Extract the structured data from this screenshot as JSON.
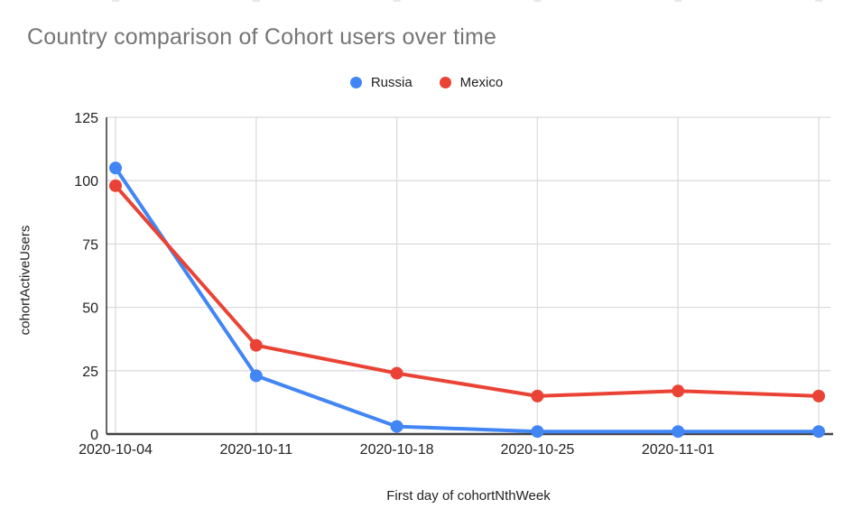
{
  "title": "Country comparison of Cohort users over time",
  "legend": {
    "items": [
      {
        "label": "Russia",
        "color": "#4285F4"
      },
      {
        "label": "Mexico",
        "color": "#EA4335"
      }
    ]
  },
  "axes": {
    "y_title": "cohortActiveUsers",
    "x_title": "First day of cohortNthWeek"
  },
  "chart_data": {
    "type": "line",
    "title": "Country comparison of Cohort users over time",
    "xlabel": "First day of cohortNthWeek",
    "ylabel": "cohortActiveUsers",
    "categories": [
      "2020-10-04",
      "2020-10-11",
      "2020-10-18",
      "2020-10-25",
      "2020-11-01",
      ""
    ],
    "series": [
      {
        "name": "Russia",
        "color": "#4285F4",
        "values": [
          105,
          23,
          3,
          1,
          1,
          1
        ]
      },
      {
        "name": "Mexico",
        "color": "#EA4335",
        "values": [
          98,
          35,
          24,
          15,
          17,
          15
        ]
      }
    ],
    "ylim": [
      0,
      125
    ],
    "yticks": [
      0,
      25,
      50,
      75,
      100,
      125
    ],
    "grid": true,
    "legend_position": "top"
  },
  "colors": {
    "title_text": "#757575",
    "tick_text": "#202124",
    "gridline": "#dcdcdc",
    "y_axis_line": "#333333",
    "x_axis_line": "#444444",
    "background": "#ffffff"
  }
}
